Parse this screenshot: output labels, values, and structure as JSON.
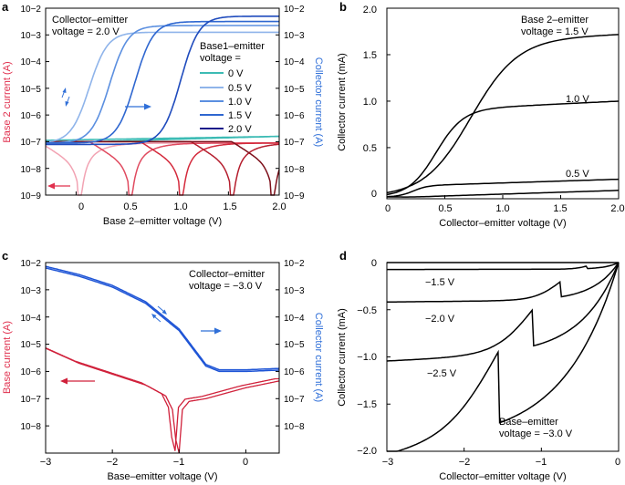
{
  "figure": {
    "colors": {
      "axis": "#000000",
      "red_axis": "#e0304e",
      "blue_axis": "#2f6fd8",
      "ib_a": [
        "#3cbbb4",
        "#f2a3b3",
        "#e04a5f",
        "#d42a3c",
        "#b51e2e",
        "#7d0f1a"
      ],
      "ic_a": [
        "#3cbbb4",
        "#8fb4ea",
        "#5b8fe0",
        "#2f67d0",
        "#1f4bbd",
        "#1b1a8a"
      ],
      "red_c": "#d0203a",
      "blue_c": "#1f55d6"
    }
  },
  "chart_data": [
    {
      "panel": "a",
      "type": "line",
      "title": "",
      "xlabel": "Base 2–emitter voltage (V)",
      "ylabel_left": "Base 2 current (A)",
      "ylabel_right": "Collector current (A)",
      "xlim": [
        -0.3,
        2.0
      ],
      "xticks": [
        0,
        0.5,
        1.0,
        1.5,
        2.0
      ],
      "xtick_labels": [
        "0",
        "0.5",
        "1.0",
        "1.5",
        "2.0"
      ],
      "ylim_log10": [
        -9,
        -2
      ],
      "ytick_labels_left": [
        "10−2",
        "10−3",
        "10−4",
        "10−5",
        "10−6",
        "10−7",
        "10−8",
        "10−9"
      ],
      "ytick_labels_right": [
        "10−2",
        "10−3",
        "10−4",
        "10−5",
        "10−6",
        "10−7",
        "10−8",
        "10−9"
      ],
      "annotation": [
        "Collector–emitter",
        "voltage = 2.0 V"
      ],
      "legend_title": [
        "Base1–emitter",
        "voltage ="
      ],
      "legend_entries": [
        "0 V",
        "0.5 V",
        "1.0 V",
        "1.5 V",
        "2.0 V"
      ],
      "base2_current_series": [
        {
          "name": "0 V",
          "dip_x": 0.05,
          "floor": -7.05,
          "slope": 0.0
        },
        {
          "name": "0.5 V",
          "dip_x": 0.05,
          "floor": -8.0,
          "slope": 1.3
        },
        {
          "name": "1.0 V",
          "dip_x": 0.55,
          "floor": -8.0,
          "slope": 1.3
        },
        {
          "name": "1.5 V",
          "dip_x": 1.05,
          "floor": -8.0,
          "slope": 1.3
        },
        {
          "name": "2.0 V",
          "dip_x": 1.55,
          "floor": -8.0,
          "slope": 1.3
        },
        {
          "name": "2.0 V b",
          "dip_x": 1.95,
          "floor": -8.0,
          "slope": 1.3
        }
      ],
      "collector_current_series": [
        {
          "name": "0 V",
          "off_log": -6.95,
          "rise_x": null,
          "on_log": -6.95
        },
        {
          "name": "0.5 V",
          "off_log": -7.05,
          "rise_x": -0.15,
          "on_log": -2.9
        },
        {
          "name": "1.0 V",
          "off_log": -7.05,
          "rise_x": 0.05,
          "on_log": -2.65
        },
        {
          "name": "1.5 V",
          "off_log": -7.05,
          "rise_x": 0.3,
          "on_log": -2.5
        },
        {
          "name": "2.0 V",
          "off_log": -7.1,
          "rise_x": 0.75,
          "on_log": -2.3
        }
      ]
    },
    {
      "panel": "b",
      "type": "line",
      "title": "",
      "xlabel": "Collector–emitter voltage (V)",
      "ylabel": "Collector current (mA)",
      "xlim": [
        0,
        2.0
      ],
      "ylim": [
        -0.05,
        2.0
      ],
      "xticks": [
        0,
        0.5,
        1.0,
        1.5,
        2.0
      ],
      "xtick_labels": [
        "0",
        "0.5",
        "1.0",
        "1.5",
        "2.0"
      ],
      "yticks": [
        0,
        0.5,
        1.0,
        1.5,
        2.0
      ],
      "ytick_labels": [
        "0",
        "0.5",
        "1.0",
        "1.5",
        "2.0"
      ],
      "annotation": [
        "Base 2–emitter",
        "voltage = 1.5 V"
      ],
      "series": [
        {
          "name": "0 V",
          "label": "",
          "sat": 0.0
        },
        {
          "name": "0.5 V",
          "label": "0.5 V",
          "sat": 0.12
        },
        {
          "name": "1.0 V",
          "label": "1.0 V",
          "sat": 0.94
        },
        {
          "name": "1.5 V",
          "label": "",
          "sat": 1.67
        }
      ]
    },
    {
      "panel": "c",
      "type": "line",
      "title": "",
      "xlabel": "Base–emitter voltage (V)",
      "ylabel_left": "Base current (A)",
      "ylabel_right": "Collector current (A)",
      "xlim": [
        -3,
        0.5
      ],
      "xticks": [
        -3,
        -2,
        -1,
        0
      ],
      "xtick_labels": [
        "−3",
        "−2",
        "−1",
        "0"
      ],
      "ylim_log10": [
        -9,
        -2
      ],
      "ytick_labels_left": [
        "10−2",
        "10−3",
        "10−4",
        "10−5",
        "10−6",
        "10−7",
        "10−8"
      ],
      "ytick_labels_right": [
        "10−2",
        "10−3",
        "10−4",
        "10−5",
        "10−6",
        "10−7",
        "10−8"
      ],
      "annotation": [
        "Collector–emitter",
        "voltage = −3.0 V"
      ],
      "collector_current": {
        "x": [
          -3.0,
          -2.5,
          -2.0,
          -1.5,
          -1.0,
          -0.6,
          -0.4,
          0.0,
          0.5
        ],
        "log10": [
          -2.2,
          -2.5,
          -2.9,
          -3.5,
          -4.5,
          -5.8,
          -6.0,
          -6.0,
          -5.95
        ]
      },
      "base_current": {
        "x": [
          -3.0,
          -2.5,
          -2.0,
          -1.5,
          -1.2,
          -1.1,
          -1.05,
          -1.0,
          -0.95,
          -0.85,
          -0.6,
          -0.3,
          0.0,
          0.5
        ],
        "log10": [
          -5.15,
          -5.7,
          -6.1,
          -6.5,
          -6.9,
          -7.4,
          -8.5,
          -9.0,
          -7.4,
          -7.1,
          -7.0,
          -6.8,
          -6.6,
          -6.35
        ]
      }
    },
    {
      "panel": "d",
      "type": "line",
      "title": "",
      "xlabel": "Collector–emitter voltage (V)",
      "ylabel": "Collector current (mA)",
      "xlim": [
        -3,
        0
      ],
      "ylim": [
        -2.0,
        0
      ],
      "xticks": [
        -3,
        -2,
        -1,
        0
      ],
      "xtick_labels": [
        "−3",
        "−2",
        "−1",
        "0"
      ],
      "yticks": [
        0,
        -0.5,
        -1.0,
        -1.5,
        -2.0
      ],
      "ytick_labels": [
        "0",
        "−0.5",
        "−1.0",
        "−1.5",
        "−2.0"
      ],
      "annotation": [
        "Base–emitter",
        "voltage = −3.0 V"
      ],
      "series": [
        {
          "name": "0 V",
          "label": "",
          "sat": 0.0
        },
        {
          "name": "-1.5 V",
          "label": "−1.5 V",
          "sat": -0.07
        },
        {
          "name": "-2.0 V",
          "label": "−2.0 V",
          "sat": -0.4
        },
        {
          "name": "-2.5 V",
          "label": "−2.5 V",
          "sat": -0.97
        },
        {
          "name": "-3.0 V",
          "label": "",
          "sat": -1.87
        }
      ]
    }
  ]
}
